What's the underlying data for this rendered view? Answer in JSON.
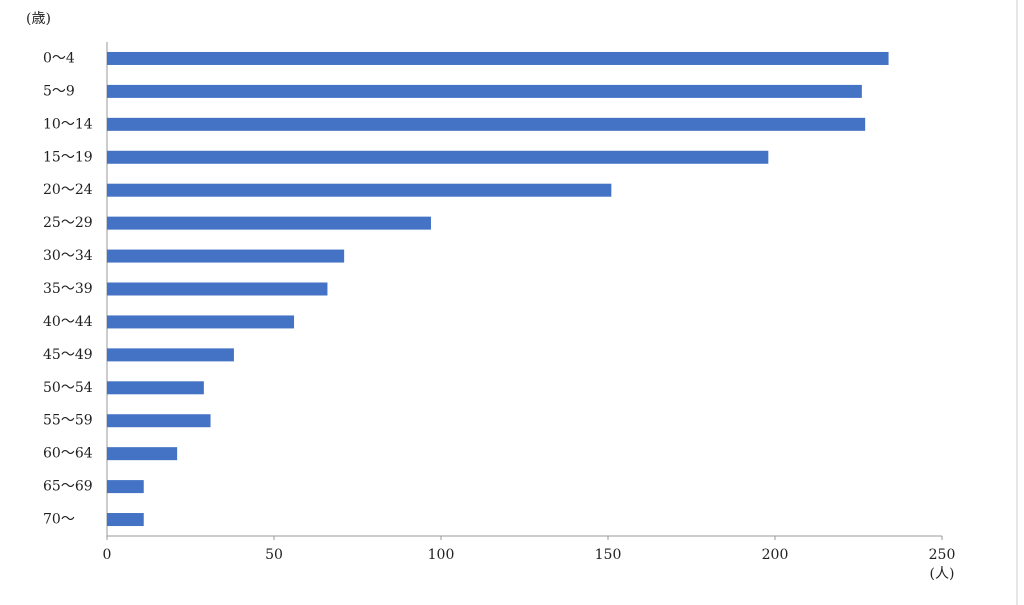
{
  "chart_data": {
    "type": "bar",
    "orientation": "horizontal",
    "y_axis_label": "(歳)",
    "x_axis_label": "(人)",
    "categories": [
      "0～4",
      "5～9",
      "10～14",
      "15～19",
      "20～24",
      "25～29",
      "30～34",
      "35～39",
      "40～44",
      "45～49",
      "50～54",
      "55～59",
      "60～64",
      "65～69",
      "70～"
    ],
    "values": [
      234,
      226,
      227,
      198,
      151,
      97,
      71,
      66,
      56,
      38,
      29,
      31,
      21,
      11,
      11
    ],
    "color": "#4472c4",
    "xlim": [
      0,
      250
    ],
    "xticks": [
      0,
      50,
      100,
      150,
      200,
      250
    ],
    "grid": false
  }
}
